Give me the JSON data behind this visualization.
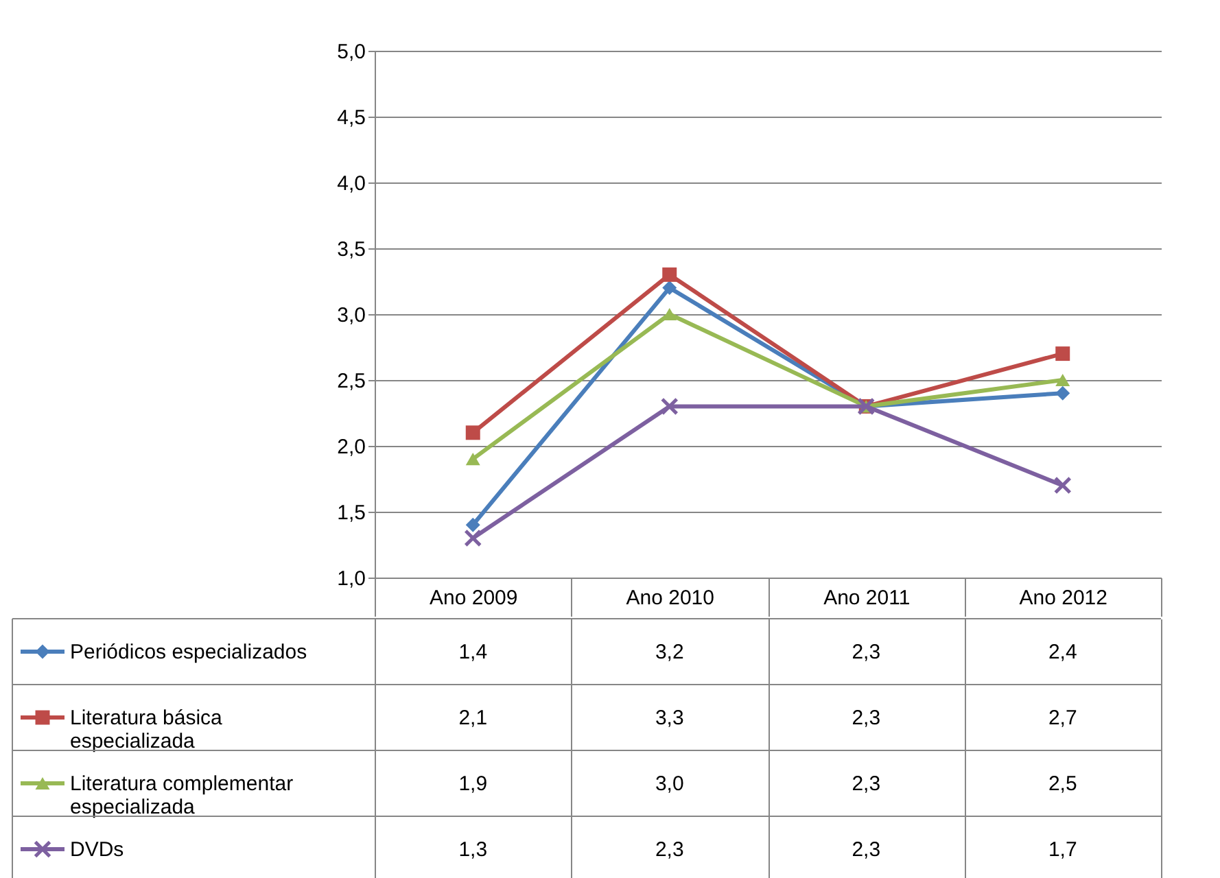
{
  "chart_data": {
    "type": "line",
    "categories": [
      "Ano 2009",
      "Ano 2010",
      "Ano 2011",
      "Ano 2012"
    ],
    "ylim": [
      1,
      5
    ],
    "yticks": [
      {
        "value": 1,
        "label": "1,0"
      },
      {
        "value": 1.5,
        "label": "1,5"
      },
      {
        "value": 2,
        "label": "2,0"
      },
      {
        "value": 2.5,
        "label": "2,5"
      },
      {
        "value": 3,
        "label": "3,0"
      },
      {
        "value": 3.5,
        "label": "3,5"
      },
      {
        "value": 4,
        "label": "4,0"
      },
      {
        "value": 4.5,
        "label": "4,5"
      },
      {
        "value": 5,
        "label": "5,0"
      }
    ],
    "grid": "y",
    "legend": "bottom left",
    "series": [
      {
        "name": "Periódicos especializados",
        "color": "#4a7ebb",
        "marker": "diamond",
        "values": [
          1.4,
          3.2,
          2.3,
          2.4
        ],
        "value_labels": [
          "1,4",
          "3,2",
          "2,3",
          "2,4"
        ]
      },
      {
        "name": "Literatura básica especializada",
        "color": "#be4b48",
        "marker": "square",
        "values": [
          2.1,
          3.3,
          2.3,
          2.7
        ],
        "value_labels": [
          "2,1",
          "3,3",
          "2,3",
          "2,7"
        ]
      },
      {
        "name": "Literatura complementar especializada",
        "color": "#98b954",
        "marker": "triangle",
        "values": [
          1.9,
          3.0,
          2.3,
          2.5
        ],
        "value_labels": [
          "1,9",
          "3,0",
          "2,3",
          "2,5"
        ]
      },
      {
        "name": "DVDs",
        "color": "#7d60a0",
        "marker": "cross",
        "values": [
          1.3,
          2.3,
          2.3,
          1.7
        ],
        "value_labels": [
          "1,3",
          "2,3",
          "2,3",
          "1,7"
        ]
      }
    ]
  }
}
